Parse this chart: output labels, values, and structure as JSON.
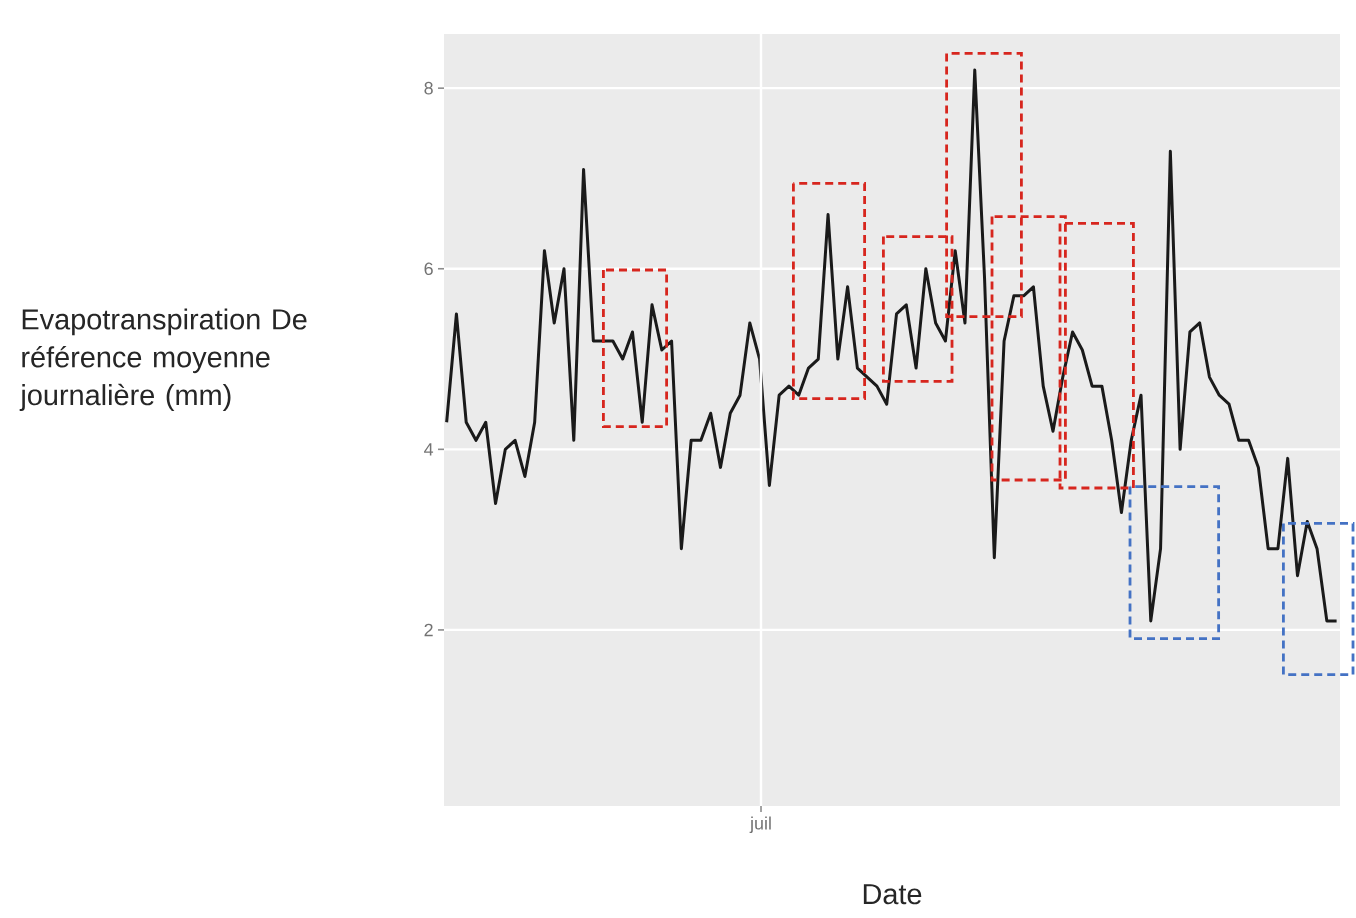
{
  "chart_data": {
    "type": "line",
    "xlabel": "Date",
    "ylabel": "Evapotranspiration De référence moyenne journalière (mm)",
    "categories": [
      null,
      null,
      null,
      null,
      null,
      null,
      null,
      null,
      null,
      null,
      null,
      null,
      null,
      null,
      null,
      null,
      null,
      null,
      null,
      null,
      null,
      null,
      null,
      null,
      null,
      null,
      null,
      null,
      null,
      null,
      null,
      null,
      null,
      null,
      null,
      null,
      null,
      null,
      null,
      null,
      null,
      null,
      null,
      null,
      null,
      null,
      null,
      null,
      null,
      null,
      null,
      null,
      null,
      null,
      null,
      null,
      null,
      null,
      null,
      null,
      null,
      null,
      null,
      null,
      null,
      null,
      null,
      null,
      null,
      null,
      null,
      null,
      null,
      null,
      null,
      null,
      null,
      null,
      null,
      null,
      null,
      null,
      null,
      null,
      null,
      null,
      null,
      null,
      null,
      null,
      null,
      null
    ],
    "annotations": [
      "juil"
    ],
    "series": [
      {
        "color": "#1a1a1a",
        "values": [
          4.3,
          5.5,
          4.3,
          4.1,
          4.3,
          3.4,
          4.0,
          4.1,
          3.7,
          4.3,
          6.2,
          5.4,
          6.0,
          4.1,
          7.1,
          5.2,
          5.2,
          5.2,
          5.0,
          5.3,
          4.3,
          5.6,
          5.1,
          5.2,
          2.9,
          4.1,
          4.1,
          4.4,
          3.8,
          4.4,
          4.6,
          5.4,
          5.0,
          3.6,
          4.6,
          4.7,
          4.6,
          4.9,
          5.0,
          6.6,
          5.0,
          5.8,
          4.9,
          4.8,
          4.7,
          4.5,
          5.5,
          5.6,
          4.9,
          6.0,
          5.4,
          5.2,
          6.2,
          5.4,
          8.2,
          5.9,
          2.8,
          5.2,
          5.7,
          5.7,
          5.8,
          4.7,
          4.2,
          4.8,
          5.3,
          5.1,
          4.7,
          4.7,
          4.1,
          3.3,
          4.1,
          4.6,
          2.1,
          2.9,
          7.3,
          4.0,
          5.3,
          5.4,
          4.8,
          4.6,
          4.5,
          4.1,
          4.1,
          3.8,
          2.9,
          2.9,
          3.9,
          2.6,
          3.2,
          2.9,
          2.1,
          2.1
        ]
      }
    ],
    "ylim": [
      0.05,
      8.6
    ],
    "yticks": [
      2,
      4,
      6,
      8
    ],
    "grid": "y",
    "line_style": "solid"
  }
}
